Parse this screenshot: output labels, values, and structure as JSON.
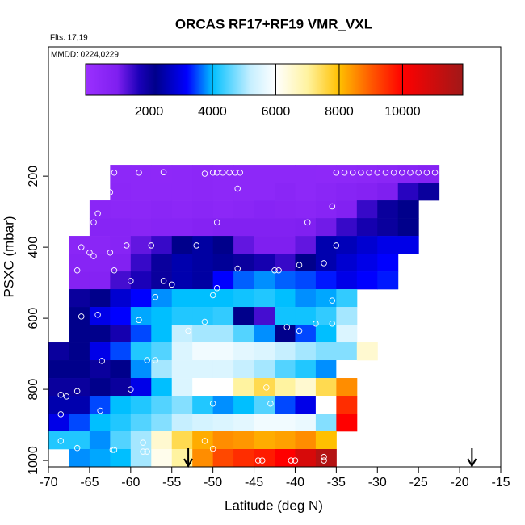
{
  "chart_data": {
    "type": "heatmap",
    "title": "ORCAS RF17+RF19 VMR_VXL",
    "annotations": [
      "Flts: 17,19",
      "MMDD: 0224,0229"
    ],
    "xlabel": "Latitude (deg N)",
    "ylabel": "PSXC (mbar)",
    "xlim": [
      -70,
      -15
    ],
    "xticks": [
      -70,
      -65,
      -60,
      -55,
      -50,
      -45,
      -40,
      -35,
      -30,
      -25,
      -20,
      -15
    ],
    "ylim": [
      -164,
      1018
    ],
    "yticks": [
      200,
      400,
      600,
      800,
      1000
    ],
    "clim": [
      0,
      11900
    ],
    "cticks": [
      2000,
      4000,
      6000,
      8000,
      10000
    ],
    "colorscale": [
      [
        0,
        "#9b30ff"
      ],
      [
        1000,
        "#7f1ff0"
      ],
      [
        1700,
        "#1a00b8"
      ],
      [
        2200,
        "#00008b"
      ],
      [
        3200,
        "#0000ff"
      ],
      [
        4000,
        "#00bfff"
      ],
      [
        5200,
        "#c6efff"
      ],
      [
        6000,
        "#ffffff"
      ],
      [
        7000,
        "#fff3a0"
      ],
      [
        8000,
        "#ffc000"
      ],
      [
        9000,
        "#ff5a00"
      ],
      [
        10000,
        "#ff0000"
      ],
      [
        11900,
        "#a01818"
      ]
    ],
    "xbins": [
      -70,
      -67.5,
      -65,
      -62.5,
      -60,
      -57.5,
      -55,
      -52.5,
      -50,
      -47.5,
      -45,
      -42.5,
      -40,
      -37.5,
      -35,
      -32.5,
      -30,
      -27.5,
      -25,
      -22.5
    ],
    "ybins": [
      168,
      218,
      268,
      318,
      368,
      418,
      468,
      518,
      568,
      618,
      668,
      718,
      768,
      818,
      868,
      918,
      968,
      1018
    ],
    "values": [
      [
        null,
        null,
        null,
        500,
        500,
        450,
        500,
        550,
        500,
        500,
        500,
        500,
        500,
        450,
        500,
        550,
        600,
        700,
        800
      ],
      [
        null,
        null,
        null,
        550,
        500,
        500,
        500,
        550,
        500,
        500,
        500,
        600,
        500,
        600,
        700,
        800,
        1000,
        1600,
        2000
      ],
      [
        null,
        null,
        600,
        550,
        550,
        600,
        550,
        600,
        550,
        600,
        700,
        650,
        600,
        700,
        900,
        1500,
        2000,
        2200,
        null
      ],
      [
        null,
        null,
        700,
        700,
        650,
        700,
        700,
        800,
        900,
        900,
        900,
        900,
        950,
        1100,
        1500,
        1800,
        2000,
        2200,
        null
      ],
      [
        null,
        600,
        600,
        700,
        1200,
        1500,
        2200,
        2400,
        2200,
        1200,
        1000,
        1000,
        1200,
        2500,
        2600,
        2800,
        3000,
        3000,
        null
      ],
      [
        null,
        700,
        700,
        900,
        1500,
        2000,
        2500,
        2400,
        2300,
        2000,
        1800,
        1500,
        2200,
        2500,
        2800,
        3000,
        3200,
        null,
        null
      ],
      [
        null,
        800,
        800,
        1400,
        1700,
        2000,
        2500,
        2400,
        3200,
        3600,
        3800,
        3600,
        3500,
        3300,
        3000,
        3200,
        3300,
        null,
        null
      ],
      [
        null,
        2000,
        2200,
        2800,
        3200,
        3800,
        4000,
        4000,
        4000,
        4100,
        4200,
        4000,
        3800,
        3900,
        4300,
        null,
        null,
        null,
        null
      ],
      [
        null,
        2200,
        3000,
        3200,
        3900,
        4000,
        4200,
        4200,
        4300,
        2200,
        1400,
        4100,
        4100,
        4300,
        5000,
        null,
        null,
        null,
        null
      ],
      [
        null,
        2200,
        2200,
        1800,
        3500,
        4000,
        5200,
        5000,
        5000,
        4500,
        3800,
        2200,
        3500,
        4000,
        5500,
        null,
        null,
        null,
        null
      ],
      [
        2000,
        2200,
        3000,
        3500,
        4200,
        4500,
        5500,
        5800,
        5800,
        5600,
        5500,
        5200,
        5000,
        4800,
        4800,
        6500,
        null,
        null,
        null
      ],
      [
        2200,
        2200,
        2000,
        2200,
        3800,
        5000,
        5500,
        5500,
        5500,
        5200,
        5000,
        4500,
        4200,
        3800,
        6000,
        null,
        null,
        null,
        null
      ],
      [
        2000,
        2000,
        2200,
        2000,
        3000,
        4000,
        5500,
        6000,
        6000,
        7000,
        7500,
        7000,
        6500,
        7500,
        8500,
        null,
        null,
        null,
        null
      ],
      [
        2500,
        2500,
        3500,
        4000,
        4200,
        4500,
        4800,
        4200,
        3800,
        4000,
        4500,
        3500,
        3000,
        6000,
        9500,
        null,
        null,
        null,
        null
      ],
      [
        3000,
        3500,
        4000,
        4200,
        4500,
        4800,
        5200,
        5400,
        5500,
        5600,
        5800,
        5800,
        5700,
        4800,
        10000,
        null,
        null,
        null,
        null
      ],
      [
        4200,
        4200,
        3800,
        4500,
        5000,
        6500,
        7500,
        8200,
        8500,
        8400,
        8200,
        8300,
        8500,
        8000,
        null,
        null,
        null,
        null,
        null
      ],
      [
        null,
        3800,
        3900,
        4000,
        5000,
        6200,
        7000,
        8500,
        9200,
        9500,
        9700,
        10000,
        10800,
        11500,
        null,
        null,
        null,
        null,
        null
      ]
    ],
    "points": {
      "x": [
        -62,
        -59,
        -56,
        -51,
        -50,
        -49.5,
        -48.8,
        -48,
        -47.3,
        -46.7,
        -35,
        -34,
        -33,
        -32,
        -31,
        -30,
        -29,
        -28,
        -27,
        -26,
        -25,
        -24,
        -23,
        -22,
        -62.5,
        -47,
        -35.5,
        -64,
        -64.5,
        -49.5,
        -38.5,
        -67,
        -66,
        -65,
        -62.5,
        -60.5,
        -57.5,
        -52,
        -35,
        -64.5,
        -66.5,
        -62,
        -47,
        -42.5,
        -42,
        -39.5,
        -36.5,
        -60,
        -56,
        -55,
        -49.5,
        -57,
        -50,
        -35.5,
        -68,
        -66,
        -64,
        -59,
        -53,
        -51,
        -41,
        -39.5,
        -37.5,
        -35.5,
        -58,
        -57,
        -63.5,
        -34.5,
        -68.5,
        -67.8,
        -66.5,
        -63.7,
        -60,
        -50,
        -43,
        -43.5,
        -36,
        -68.5,
        -68.5,
        -58.5,
        -51,
        -66.5,
        -62.2,
        -62,
        -58.5,
        -58,
        -50,
        -44.5,
        -44,
        -40.5,
        -40,
        -36.5,
        -36.5
      ],
      "y": [
        190,
        190,
        189,
        193,
        190,
        190,
        190,
        190,
        190,
        190,
        190,
        190,
        190,
        190,
        190,
        190,
        190,
        190,
        190,
        190,
        190,
        190,
        190,
        190,
        245,
        235,
        285,
        305,
        330,
        330,
        330,
        345,
        400,
        415,
        415,
        395,
        395,
        395,
        395,
        425,
        465,
        465,
        460,
        465,
        465,
        450,
        445,
        495,
        495,
        505,
        515,
        540,
        535,
        550,
        595,
        595,
        590,
        605,
        635,
        610,
        625,
        635,
        615,
        615,
        718,
        718,
        720,
        745,
        815,
        820,
        805,
        860,
        800,
        840,
        840,
        795,
        840,
        870,
        945,
        950,
        945,
        965,
        970,
        970,
        975,
        975,
        967,
        1000,
        1000,
        1000,
        1000,
        990,
        1000
      ]
    },
    "arrows": [
      -53,
      -18.5
    ]
  }
}
